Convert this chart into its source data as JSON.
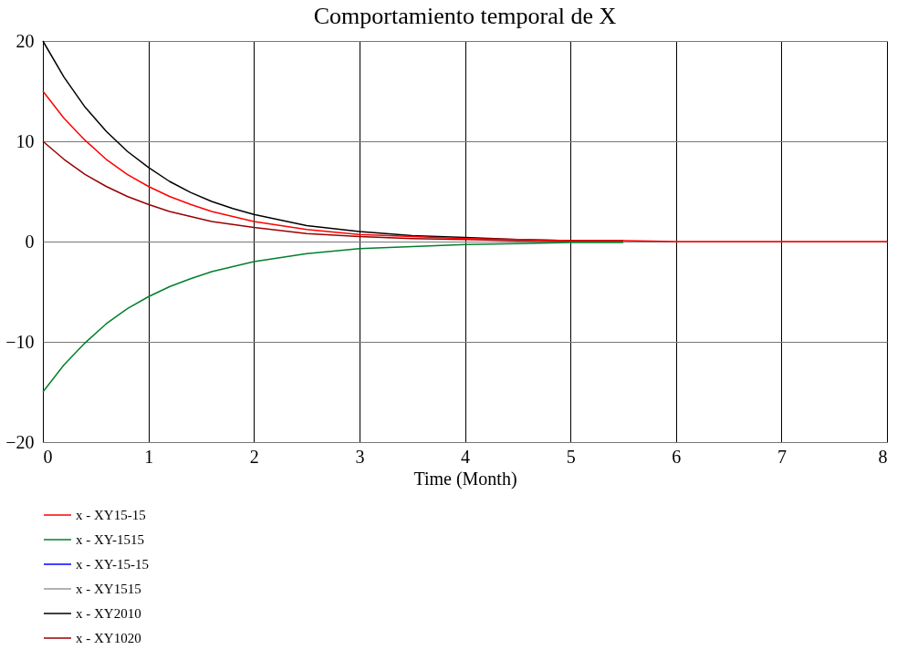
{
  "chart_data": {
    "type": "line",
    "title": "Comportamiento temporal de X",
    "xlabel": "Time (Month)",
    "x": [
      0,
      0.2,
      0.4,
      0.6,
      0.8,
      1,
      1.2,
      1.4,
      1.6,
      1.8,
      2,
      2.5,
      3,
      3.5,
      4,
      4.5,
      5,
      5.5,
      6,
      7,
      8
    ],
    "series": [
      {
        "name": "x - XY15-15",
        "color": "#ff0000",
        "values": [
          15,
          12.3,
          10.1,
          8.2,
          6.7,
          5.5,
          4.5,
          3.7,
          3.0,
          2.5,
          2.0,
          1.2,
          0.7,
          0.5,
          0.3,
          0.2,
          0.1,
          0.1,
          0,
          0,
          0
        ]
      },
      {
        "name": "x - XY-1515",
        "color": "#00802b",
        "values": [
          -15,
          -12.3,
          -10.1,
          -8.2,
          -6.7,
          -5.5,
          -4.5,
          -3.7,
          -3.0,
          -2.5,
          -2.0,
          -1.2,
          -0.7,
          -0.5,
          -0.3,
          -0.2,
          -0.1,
          -0.1,
          null,
          null,
          null
        ]
      },
      {
        "name": "x - XY-15-15",
        "color": "#0000ff",
        "values": [
          null,
          null,
          null,
          null,
          null,
          null,
          null,
          null,
          null,
          null,
          null,
          null,
          null,
          null,
          null,
          null,
          null,
          null,
          null,
          null,
          null
        ]
      },
      {
        "name": "x - XY1515",
        "color": "#999999",
        "values": [
          null,
          null,
          null,
          null,
          null,
          null,
          null,
          null,
          null,
          null,
          null,
          null,
          null,
          null,
          null,
          null,
          null,
          null,
          null,
          null,
          null
        ]
      },
      {
        "name": "x - XY2010",
        "color": "#000000",
        "values": [
          20,
          16.4,
          13.4,
          11,
          9,
          7.4,
          6.0,
          4.9,
          4.0,
          3.3,
          2.7,
          1.6,
          1.0,
          0.6,
          0.4,
          0.2,
          0.1,
          0.1,
          null,
          null,
          null
        ]
      },
      {
        "name": "x - XY1020",
        "color": "#990000",
        "values": [
          10,
          8.2,
          6.7,
          5.5,
          4.5,
          3.7,
          3.0,
          2.5,
          2.0,
          1.7,
          1.4,
          0.8,
          0.5,
          0.3,
          0.2,
          0.1,
          0.1,
          null,
          null,
          null,
          null
        ]
      }
    ],
    "xlim": [
      0,
      8
    ],
    "xticks": [
      0,
      1,
      2,
      3,
      4,
      5,
      6,
      7,
      8
    ],
    "ylim": [
      -20,
      20
    ],
    "yticks": [
      -20,
      -10,
      0,
      10,
      20
    ],
    "grid": true,
    "legend": "bottom",
    "marker": "none",
    "line_style": "solid"
  }
}
